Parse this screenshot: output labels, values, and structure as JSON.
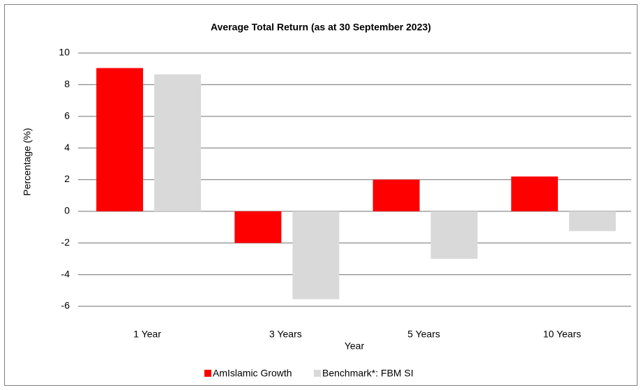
{
  "chart_data": {
    "type": "bar",
    "title": "Average Total Return (as at 30 September 2023)",
    "x_label": "Year",
    "y_label": "Percentage (%)",
    "categories": [
      "1 Year",
      "3 Years",
      "5 Years",
      "10 Years"
    ],
    "series": [
      {
        "name": "AmIslamic Growth",
        "color": "#ff0000",
        "values": [
          9.05,
          -2.0,
          2.0,
          2.2
        ]
      },
      {
        "name": "Benchmark*: FBM SI",
        "color": "#d9d9d9",
        "values": [
          8.65,
          -5.55,
          -3.0,
          -1.25
        ]
      }
    ],
    "ylim": [
      -6,
      10
    ],
    "yticks": [
      -6,
      -4,
      -2,
      0,
      2,
      4,
      6,
      8,
      10
    ],
    "grid": true,
    "legend": "bottom"
  }
}
